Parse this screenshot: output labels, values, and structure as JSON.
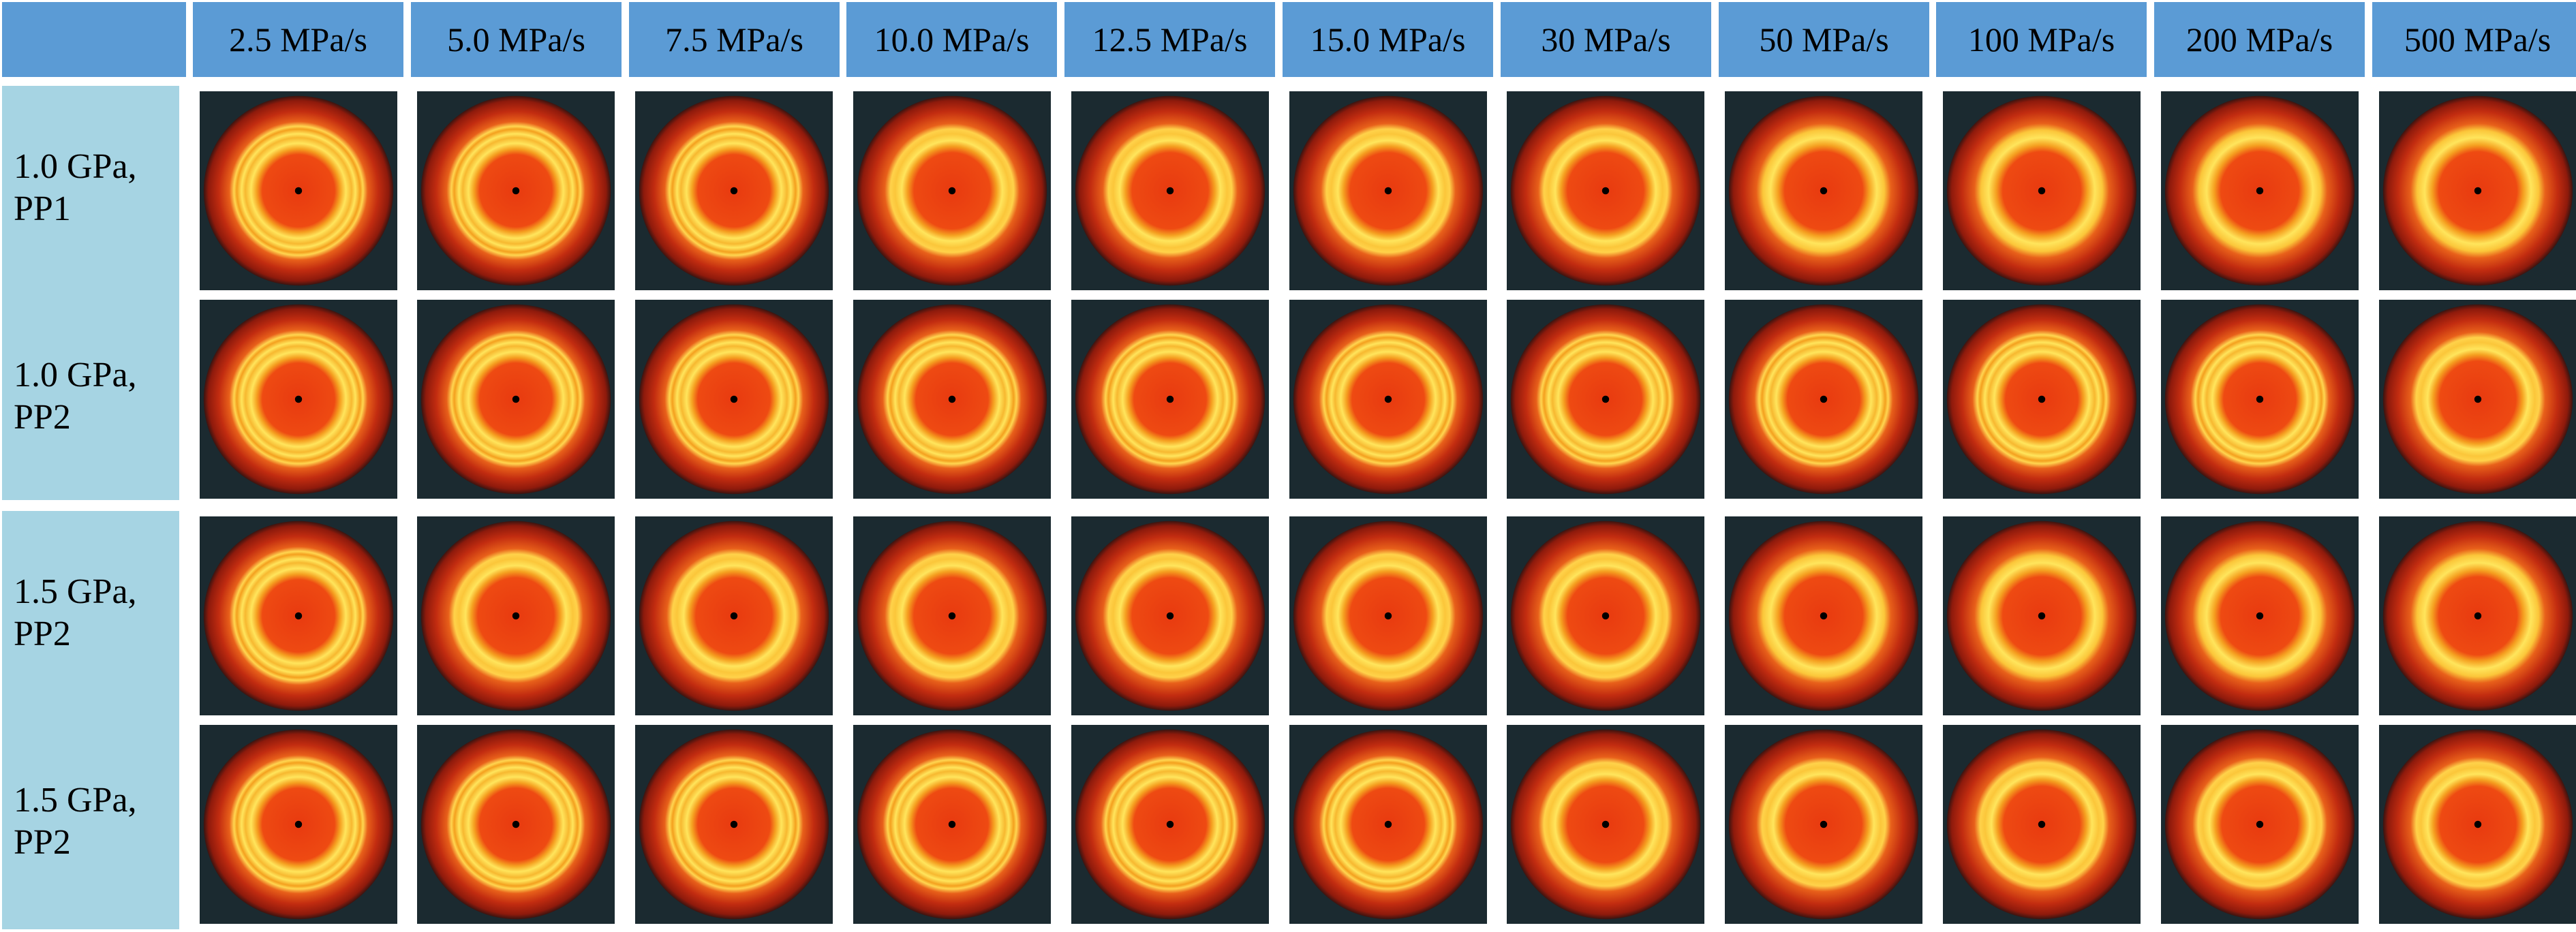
{
  "columns": [
    "2.5 MPa/s",
    "5.0 MPa/s",
    "7.5 MPa/s",
    "10.0 MPa/s",
    "12.5 MPa/s",
    "15.0 MPa/s",
    "30 MPa/s",
    "50 MPa/s",
    "100 MPa/s",
    "200 MPa/s",
    "500 MPa/s"
  ],
  "rows": [
    {
      "line1": "1.0 GPa,",
      "line2": "PP1"
    },
    {
      "line1": "1.0 GPa,",
      "line2": "PP2"
    },
    {
      "line1": "1.5 GPa,",
      "line2": "PP2"
    },
    {
      "line1": "1.5 GPa,",
      "line2": "PP2"
    }
  ],
  "patterns": [
    [
      2,
      2,
      2,
      1,
      1,
      1,
      1,
      0,
      0,
      0,
      0
    ],
    [
      2,
      2,
      2,
      2,
      2,
      2,
      2,
      2,
      2,
      2,
      1
    ],
    [
      2,
      1,
      1,
      1,
      1,
      1,
      1,
      0,
      0,
      0,
      0
    ],
    [
      2,
      2,
      2,
      2,
      2,
      2,
      1,
      1,
      1,
      1,
      1
    ]
  ],
  "colors": {
    "header_bg": "#5b9bd5",
    "row_label_bg": "#a6d4e3",
    "panel_bg": "#1b2a30",
    "ring_yellow": "#ffe55c",
    "ring_orange": "#f5a020",
    "disc_red": "#e83a10",
    "halo_dark_red": "#8e1a0c"
  }
}
